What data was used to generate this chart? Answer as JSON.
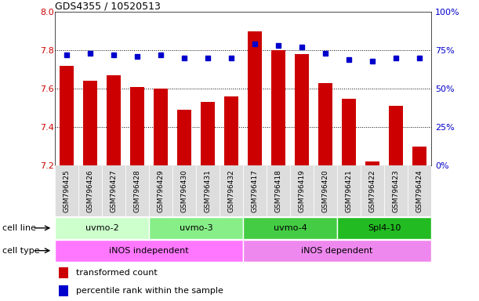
{
  "title": "GDS4355 / 10520513",
  "samples": [
    "GSM796425",
    "GSM796426",
    "GSM796427",
    "GSM796428",
    "GSM796429",
    "GSM796430",
    "GSM796431",
    "GSM796432",
    "GSM796417",
    "GSM796418",
    "GSM796419",
    "GSM796420",
    "GSM796421",
    "GSM796422",
    "GSM796423",
    "GSM796424"
  ],
  "transformed_count": [
    7.72,
    7.64,
    7.67,
    7.61,
    7.6,
    7.49,
    7.53,
    7.56,
    7.9,
    7.8,
    7.78,
    7.63,
    7.55,
    7.22,
    7.51,
    7.3
  ],
  "percentile_rank": [
    72,
    73,
    72,
    71,
    72,
    70,
    70,
    70,
    79,
    78,
    77,
    73,
    69,
    68,
    70,
    70
  ],
  "y_min": 7.2,
  "y_max": 8.0,
  "y_ticks": [
    7.2,
    7.4,
    7.6,
    7.8,
    8.0
  ],
  "right_y_ticks": [
    0,
    25,
    50,
    75,
    100
  ],
  "right_y_labels": [
    "0%",
    "25%",
    "50%",
    "75%",
    "100%"
  ],
  "cell_line_groups": [
    {
      "label": "uvmo-2",
      "start": 0,
      "end": 3,
      "color": "#ccffcc"
    },
    {
      "label": "uvmo-3",
      "start": 4,
      "end": 7,
      "color": "#88ee88"
    },
    {
      "label": "uvmo-4",
      "start": 8,
      "end": 11,
      "color": "#44cc44"
    },
    {
      "label": "Spl4-10",
      "start": 12,
      "end": 15,
      "color": "#22bb22"
    }
  ],
  "cell_type_groups": [
    {
      "label": "iNOS independent",
      "start": 0,
      "end": 7,
      "color": "#ff77ff"
    },
    {
      "label": "iNOS dependent",
      "start": 8,
      "end": 15,
      "color": "#ee88ee"
    }
  ],
  "bar_color": "#cc0000",
  "dot_color": "#0000cc",
  "legend_bar_label": "transformed count",
  "legend_dot_label": "percentile rank within the sample",
  "tick_label_color_left": "#cc0000",
  "tick_label_color_right": "#0000cc",
  "xtick_bg_color": "#dddddd"
}
